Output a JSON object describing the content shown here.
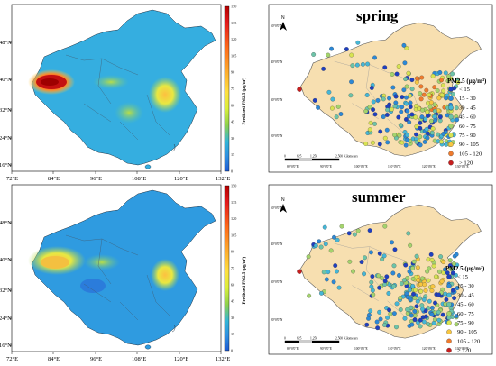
{
  "left_maps": {
    "lon_labels": [
      "72°E",
      "84°E",
      "96°E",
      "108°E",
      "120°E",
      "132°E"
    ],
    "lat_labels": [
      "48°N",
      "40°N",
      "32°N",
      "24°N",
      "16°N"
    ],
    "colorbar": {
      "label": "Predicted PM2.5 (μg/m³)",
      "ticks": [
        "150",
        "135",
        "120",
        "105",
        "90",
        "75",
        "60",
        "45",
        "30",
        "15",
        "0"
      ],
      "colors": [
        "#b30000",
        "#e31a1c",
        "#fd6a1a",
        "#fdae2e",
        "#fee040",
        "#d9ef3b",
        "#8ed14c",
        "#4bbf8c",
        "#33b5d6",
        "#2f8fe0",
        "#1f5ad1"
      ]
    },
    "maps": [
      {
        "name": "left-spring-map"
      },
      {
        "name": "left-summer-map"
      }
    ]
  },
  "right_maps": {
    "lon_labels": [
      "80°0'0\"E",
      "90°0'0\"E",
      "100°0'0\"E",
      "110°0'0\"E",
      "120°0'0\"E",
      "130°0'0\"E"
    ],
    "lat_labels": [
      "50°0'0\"N",
      "40°0'0\"N",
      "30°0'0\"N",
      "20°0'0\"N"
    ],
    "north_label": "N",
    "scalebar": [
      "0",
      "625",
      "1,250",
      "2,500 Kilometers"
    ],
    "legend_title": "PM2.5 (μg/m³)",
    "legend_items": [
      {
        "label": "< 15",
        "color": "#1f3fbf"
      },
      {
        "label": "15 - 30",
        "color": "#2c88d6"
      },
      {
        "label": "30 - 45",
        "color": "#45b6d6"
      },
      {
        "label": "45 - 60",
        "color": "#6cc3a8"
      },
      {
        "label": "60 - 75",
        "color": "#a4d36d"
      },
      {
        "label": "75 - 90",
        "color": "#d8e352"
      },
      {
        "label": "90 - 105",
        "color": "#f7c642"
      },
      {
        "label": "105 - 120",
        "color": "#ef7b2d"
      },
      {
        "label": "> 120",
        "color": "#c81e1e"
      }
    ],
    "maps": [
      {
        "name": "right-spring-map",
        "title": "spring"
      },
      {
        "name": "right-summer-map",
        "title": "summer"
      }
    ]
  },
  "colors": {
    "land": "#f7dfb0",
    "sea_blue": "#2f7fd8",
    "background": "#ffffff"
  }
}
